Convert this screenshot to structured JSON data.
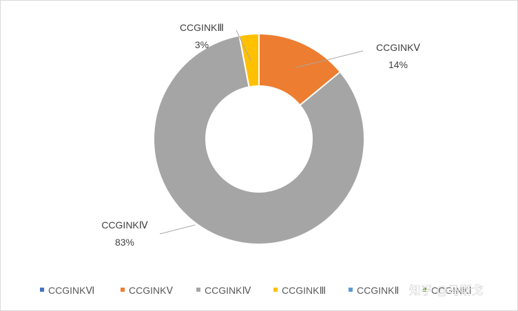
{
  "chart_data": {
    "type": "pie",
    "donut": true,
    "title": "",
    "categories": [
      "CCGINKⅥ",
      "CCGINKⅤ",
      "CCGINKⅣ",
      "CCGINKⅢ",
      "CCGINKⅡ",
      "CCGINKⅠ"
    ],
    "values": [
      0,
      14,
      83,
      3,
      0,
      0
    ],
    "value_labels": [
      "",
      "14%",
      "83%",
      "3%",
      "",
      ""
    ],
    "colors": [
      "#4472c4",
      "#ed7d31",
      "#a5a5a5",
      "#ffc000",
      "#5b9bd5",
      "#70ad47"
    ],
    "legend_position": "bottom",
    "start_angle_deg": 0,
    "direction": "clockwise"
  },
  "watermark": "知乎 @马斯戈"
}
